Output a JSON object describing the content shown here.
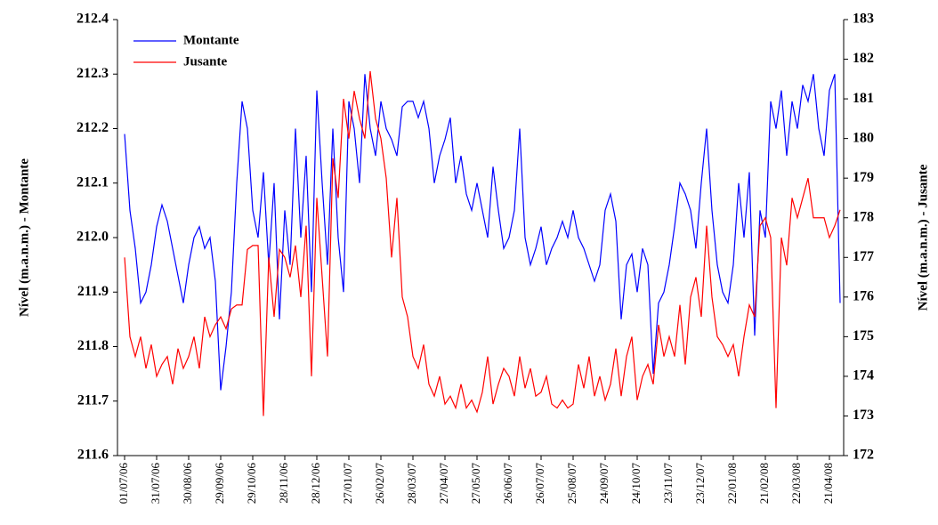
{
  "chart_data": {
    "type": "line",
    "y_label": "Nível (m.a.n.m.) - Montante",
    "y2_label": "Nível (m.a.n.m.) - Jusante",
    "categories": [
      "01/07/06",
      null,
      null,
      null,
      null,
      null,
      "31/07/06",
      null,
      null,
      null,
      null,
      null,
      "30/08/06",
      null,
      null,
      null,
      null,
      null,
      "29/09/06",
      null,
      null,
      null,
      null,
      null,
      "29/10/06",
      null,
      null,
      null,
      null,
      null,
      "28/11/06",
      null,
      null,
      null,
      null,
      null,
      "28/12/06",
      null,
      null,
      null,
      null,
      null,
      "27/01/07",
      null,
      null,
      null,
      null,
      null,
      "26/02/07",
      null,
      null,
      null,
      null,
      null,
      "28/03/07",
      null,
      null,
      null,
      null,
      null,
      "27/04/07",
      null,
      null,
      null,
      null,
      null,
      "27/05/07",
      null,
      null,
      null,
      null,
      null,
      "26/06/07",
      null,
      null,
      null,
      null,
      null,
      "26/07/07",
      null,
      null,
      null,
      null,
      null,
      "25/08/07",
      null,
      null,
      null,
      null,
      null,
      "24/09/07",
      null,
      null,
      null,
      null,
      null,
      "24/10/07",
      null,
      null,
      null,
      null,
      null,
      "23/11/07",
      null,
      null,
      null,
      null,
      null,
      "23/12/07",
      null,
      null,
      null,
      null,
      null,
      "22/01/08",
      null,
      null,
      null,
      null,
      null,
      "21/02/08",
      null,
      null,
      null,
      null,
      null,
      "22/03/08",
      null,
      null,
      null,
      null,
      null,
      "21/04/08",
      null,
      null
    ],
    "series": [
      {
        "name": "Montante",
        "color": "#0000ff",
        "axis": "y",
        "values": [
          212.19,
          212.05,
          211.98,
          211.88,
          211.9,
          211.95,
          212.02,
          212.06,
          212.03,
          211.98,
          211.93,
          211.88,
          211.95,
          212.0,
          212.02,
          211.98,
          212.0,
          211.92,
          211.72,
          211.8,
          211.9,
          212.1,
          212.25,
          212.2,
          212.05,
          212.0,
          212.12,
          211.95,
          212.1,
          211.85,
          212.05,
          211.95,
          212.2,
          212.0,
          212.15,
          211.9,
          212.27,
          212.1,
          211.95,
          212.2,
          212.0,
          211.9,
          212.25,
          212.2,
          212.1,
          212.3,
          212.2,
          212.15,
          212.25,
          212.2,
          212.18,
          212.15,
          212.24,
          212.25,
          212.25,
          212.22,
          212.25,
          212.2,
          212.1,
          212.15,
          212.18,
          212.22,
          212.1,
          212.15,
          212.08,
          212.05,
          212.1,
          212.05,
          212.0,
          212.13,
          212.05,
          211.98,
          212.0,
          212.05,
          212.2,
          212.0,
          211.95,
          211.98,
          212.02,
          211.95,
          211.98,
          212.0,
          212.03,
          212.0,
          212.05,
          212.0,
          211.98,
          211.95,
          211.92,
          211.95,
          212.05,
          212.08,
          212.03,
          211.85,
          211.95,
          211.97,
          211.9,
          211.98,
          211.95,
          211.75,
          211.88,
          211.9,
          211.95,
          212.02,
          212.1,
          212.08,
          212.05,
          211.98,
          212.1,
          212.2,
          212.05,
          211.95,
          211.9,
          211.88,
          211.95,
          212.1,
          212.0,
          212.12,
          211.82,
          212.05,
          212.0,
          212.25,
          212.2,
          212.27,
          212.15,
          212.25,
          212.2,
          212.28,
          212.25,
          212.3,
          212.2,
          212.15,
          212.27,
          212.3,
          211.88
        ]
      },
      {
        "name": "Jusante",
        "color": "#ff0000",
        "axis": "y2",
        "values": [
          177,
          175,
          174.5,
          175,
          174.2,
          174.8,
          174,
          174.3,
          174.5,
          173.8,
          174.7,
          174.2,
          174.5,
          175,
          174.2,
          175.5,
          175,
          175.3,
          175.5,
          175.2,
          175.7,
          175.8,
          175.8,
          177.2,
          177.3,
          177.3,
          173,
          177,
          175.5,
          177.2,
          177,
          176.5,
          177.3,
          176,
          177.8,
          174,
          178.5,
          176.5,
          174.5,
          179.5,
          178.5,
          181,
          180,
          181.2,
          180.5,
          180,
          181.7,
          180.5,
          180,
          179,
          177,
          178.5,
          176,
          175.5,
          174.5,
          174.2,
          174.8,
          173.8,
          173.5,
          174,
          173.3,
          173.5,
          173.2,
          173.8,
          173.2,
          173.4,
          173.1,
          173.6,
          174.5,
          173.3,
          173.8,
          174.2,
          174,
          173.5,
          174.5,
          173.7,
          174.2,
          173.5,
          173.6,
          174,
          173.3,
          173.2,
          173.4,
          173.2,
          173.3,
          174.3,
          173.7,
          174.5,
          173.5,
          174,
          173.4,
          173.8,
          174.7,
          173.5,
          174.5,
          175,
          173.4,
          174,
          174.3,
          173.8,
          175.3,
          174.5,
          175,
          174.5,
          175.8,
          174.3,
          176,
          176.5,
          175.5,
          177.8,
          176,
          175,
          174.8,
          174.5,
          174.8,
          174,
          175,
          175.8,
          175.5,
          177.8,
          178,
          177.5,
          173.2,
          177.5,
          176.8,
          178.5,
          178,
          178.5,
          179,
          178,
          178,
          178,
          177.5,
          177.8,
          178.2
        ]
      }
    ],
    "ylim": [
      211.6,
      212.4
    ],
    "yticks": [
      211.6,
      211.7,
      211.8,
      211.9,
      {
        "value": 212,
        "label": "212.0"
      },
      212.1,
      212.2,
      212.3,
      212.4
    ],
    "y2lim": [
      172,
      183
    ],
    "y2ticks": [
      172,
      173,
      174,
      175,
      176,
      177,
      178,
      179,
      180,
      181,
      182,
      183
    ],
    "legend": "top-left",
    "grid": false
  }
}
